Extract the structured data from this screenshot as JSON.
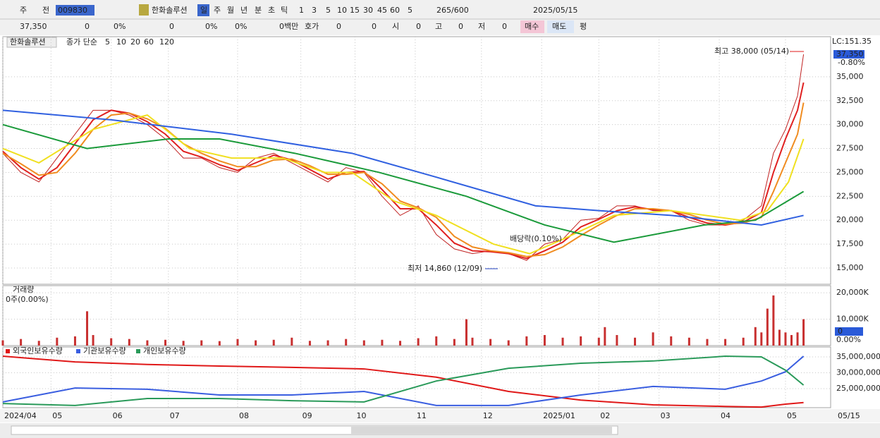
{
  "toolbar": {
    "row1": [
      "주",
      "전",
      "009830",
      "한화솔루션",
      "일",
      "주",
      "월",
      "년",
      "분",
      "초",
      "틱",
      "1",
      "3",
      "5",
      "10",
      "15",
      "30",
      "45",
      "60",
      "5",
      "265",
      "/600",
      "2025/05/15"
    ],
    "row2": [
      "37,350",
      "0",
      "0%",
      "0",
      "0%",
      "0%",
      "0백만",
      "호가",
      "0",
      "0",
      "시",
      "0",
      "고",
      "0",
      "저",
      "0",
      "매수",
      "매도",
      "평"
    ]
  },
  "chart_data": [
    {
      "type": "line",
      "stock_name": "한화솔루션",
      "legend_title": "종가 단순",
      "color": "#c02020",
      "x": [
        0,
        6,
        12,
        18,
        24,
        30,
        36,
        42,
        48,
        54,
        60,
        66,
        72,
        78,
        84,
        90,
        96,
        102,
        108,
        114,
        120,
        126,
        132,
        138,
        144,
        150,
        156,
        162,
        168,
        174,
        180,
        186,
        192,
        198,
        204,
        210,
        216,
        222,
        228,
        234,
        240,
        246,
        252,
        256,
        260,
        264,
        266
      ],
      "values": [
        27000,
        25000,
        24000,
        26500,
        29000,
        31500,
        31500,
        31000,
        30000,
        28500,
        26500,
        26500,
        25500,
        25000,
        26500,
        27000,
        26000,
        25000,
        24000,
        25500,
        25000,
        22500,
        20500,
        21500,
        18500,
        17000,
        16500,
        16800,
        16500,
        15800,
        17500,
        18000,
        20000,
        20200,
        21500,
        21500,
        21000,
        21000,
        20000,
        19500,
        19500,
        20000,
        21500,
        27000,
        29500,
        33000,
        37350
      ],
      "series": [
        {
          "name": "5",
          "color": "#e02020",
          "x": [
            0,
            6,
            12,
            18,
            24,
            30,
            36,
            42,
            48,
            54,
            60,
            66,
            72,
            78,
            84,
            90,
            96,
            102,
            108,
            114,
            120,
            126,
            132,
            138,
            144,
            150,
            156,
            162,
            168,
            174,
            180,
            186,
            192,
            198,
            204,
            210,
            216,
            222,
            228,
            234,
            240,
            246,
            252,
            256,
            260,
            264,
            266
          ],
          "values": [
            27200,
            25500,
            24300,
            25500,
            28000,
            30500,
            31500,
            31200,
            30300,
            29000,
            27200,
            26600,
            25800,
            25200,
            26000,
            26800,
            26300,
            25300,
            24300,
            25000,
            25100,
            23200,
            21200,
            21200,
            19500,
            17600,
            16800,
            16700,
            16500,
            16000,
            16800,
            17700,
            19300,
            20100,
            21000,
            21400,
            21100,
            21000,
            20300,
            19700,
            19500,
            19800,
            20800,
            25000,
            28500,
            31500,
            34400
          ]
        },
        {
          "name": "10",
          "color": "#f08c20",
          "x": [
            0,
            6,
            12,
            18,
            24,
            30,
            36,
            42,
            48,
            54,
            60,
            66,
            72,
            78,
            84,
            90,
            96,
            102,
            108,
            114,
            120,
            126,
            132,
            138,
            144,
            150,
            156,
            162,
            168,
            174,
            180,
            186,
            192,
            198,
            204,
            210,
            216,
            222,
            228,
            234,
            240,
            246,
            252,
            256,
            260,
            264,
            266
          ],
          "values": [
            27000,
            25900,
            24700,
            25000,
            27000,
            29500,
            31000,
            31200,
            30600,
            29600,
            28000,
            27000,
            26200,
            25600,
            25600,
            26300,
            26400,
            25700,
            24800,
            24800,
            25000,
            23800,
            22000,
            21300,
            20300,
            18300,
            17200,
            16800,
            16600,
            16200,
            16400,
            17200,
            18400,
            19500,
            20500,
            21200,
            21200,
            21000,
            20600,
            20000,
            19600,
            19700,
            20300,
            23000,
            26000,
            29000,
            32300
          ]
        },
        {
          "name": "20",
          "color": "#f0e020",
          "x": [
            0,
            12,
            30,
            48,
            62,
            76,
            93,
            107,
            116,
            130,
            144,
            163,
            175,
            186,
            203,
            222,
            245,
            254,
            261,
            266
          ],
          "values": [
            27500,
            26000,
            29500,
            31000,
            27500,
            26500,
            26500,
            25000,
            25000,
            22000,
            20500,
            17500,
            16500,
            18000,
            20500,
            21000,
            20000,
            21000,
            24000,
            28500
          ]
        },
        {
          "name": "60",
          "color": "#1a9a3a",
          "x": [
            0,
            28,
            55,
            72,
            97,
            125,
            154,
            180,
            203,
            233,
            250,
            266
          ],
          "values": [
            30000,
            27500,
            28500,
            28500,
            27000,
            25000,
            22500,
            19500,
            17700,
            19500,
            20000,
            23000
          ]
        },
        {
          "name": "120",
          "color": "#3060e0",
          "x": [
            0,
            36,
            76,
            116,
            144,
            177,
            198,
            222,
            252,
            266
          ],
          "values": [
            31500,
            30500,
            29000,
            27000,
            24500,
            21500,
            21000,
            20500,
            19500,
            20500
          ]
        }
      ],
      "xlim": [
        0,
        275
      ],
      "ylim": [
        13300,
        39200
      ],
      "xticks": [
        {
          "value": 0,
          "label": "2024/04"
        },
        {
          "value": 16,
          "label": "05"
        },
        {
          "value": 36,
          "label": "06"
        },
        {
          "value": 55,
          "label": "07"
        },
        {
          "value": 78,
          "label": "08"
        },
        {
          "value": 99,
          "label": "09"
        },
        {
          "value": 117,
          "label": "10"
        },
        {
          "value": 137,
          "label": "11"
        },
        {
          "value": 159,
          "label": "12"
        },
        {
          "value": 179,
          "label": "2025/01"
        },
        {
          "value": 198,
          "label": "02"
        },
        {
          "value": 218,
          "label": "03"
        },
        {
          "value": 238,
          "label": "04"
        },
        {
          "value": 260,
          "label": "05"
        }
      ],
      "yticks": [
        {
          "value": 15000,
          "label": "15,000"
        },
        {
          "value": 17500,
          "label": "17,500"
        },
        {
          "value": 20000,
          "label": "20,000"
        },
        {
          "value": 22500,
          "label": "22,500"
        },
        {
          "value": 25000,
          "label": "25,000"
        },
        {
          "value": 27500,
          "label": "27,500"
        },
        {
          "value": 30000,
          "label": "30,000"
        },
        {
          "value": 32500,
          "label": "32,500"
        },
        {
          "value": 35000,
          "label": "35,000"
        }
      ],
      "grid": true,
      "cursor_date": "05/15",
      "lc_label": "LC:151.35",
      "current_price": "37,350",
      "change": "-0.80%",
      "annotations": [
        "최고 38,000 (05/14)",
        "최저 14,860 (12/09)",
        "배당락(0.10%)"
      ]
    },
    {
      "type": "bar",
      "title": "거래량",
      "subtitle": "0주(0.00%)",
      "color": "#c83030",
      "x": [
        0,
        6,
        12,
        18,
        24,
        28,
        30,
        36,
        42,
        48,
        54,
        60,
        66,
        72,
        78,
        84,
        90,
        96,
        102,
        108,
        114,
        120,
        126,
        132,
        138,
        144,
        150,
        154,
        156,
        162,
        168,
        174,
        180,
        186,
        192,
        198,
        200,
        204,
        210,
        216,
        222,
        228,
        234,
        240,
        246,
        250,
        252,
        254,
        256,
        258,
        260,
        262,
        264,
        266
      ],
      "values": [
        2000,
        2500,
        1800,
        3000,
        3500,
        13000,
        4000,
        2800,
        2500,
        2000,
        2200,
        1800,
        2000,
        1700,
        2500,
        2000,
        2200,
        3000,
        1800,
        2000,
        2500,
        2000,
        2200,
        1800,
        2800,
        3500,
        2500,
        10000,
        3000,
        2500,
        2000,
        3500,
        4000,
        3000,
        3500,
        3000,
        7000,
        4000,
        3000,
        5000,
        3500,
        3000,
        2500,
        2500,
        3000,
        7000,
        5000,
        14000,
        19000,
        6000,
        5000,
        4000,
        5000,
        10000
      ],
      "xlim": [
        0,
        275
      ],
      "ylim": [
        0,
        22700
      ],
      "yticks": [
        {
          "value": 10000,
          "label": "10,000K"
        },
        {
          "value": 20000,
          "label": "20,000K"
        }
      ],
      "grid": true,
      "current_value": "0",
      "change": "0.00%"
    },
    {
      "type": "line",
      "series": [
        {
          "name": "외국인보유수량",
          "color": "#e01818",
          "x": [
            0,
            24,
            48,
            72,
            96,
            120,
            144,
            168,
            192,
            216,
            240,
            252,
            260,
            266
          ],
          "values": [
            35200000,
            33400000,
            32600000,
            32100000,
            31700000,
            31200000,
            28600000,
            24100000,
            21400000,
            19900000,
            19400000,
            19200000,
            20100000,
            20600000
          ]
        },
        {
          "name": "기관보유수량",
          "color": "#3a5ee0",
          "x": [
            0,
            24,
            48,
            72,
            96,
            120,
            144,
            168,
            192,
            216,
            240,
            252,
            260,
            266
          ],
          "values": [
            20800000,
            25200000,
            24800000,
            23000000,
            23000000,
            24100000,
            19700000,
            19700000,
            23000000,
            25700000,
            24800000,
            27400000,
            30300000,
            35200000
          ]
        },
        {
          "name": "개인보유수량",
          "color": "#2a9a5a",
          "x": [
            0,
            24,
            48,
            72,
            96,
            120,
            144,
            168,
            192,
            216,
            240,
            252,
            260,
            266
          ],
          "values": [
            20300000,
            19700000,
            21900000,
            21900000,
            21200000,
            20800000,
            27400000,
            31400000,
            33000000,
            33700000,
            35200000,
            35000000,
            30800000,
            26100000
          ]
        }
      ],
      "xlim": [
        0,
        275
      ],
      "ylim": [
        19000000,
        38100000
      ],
      "yticks": [
        {
          "value": 25000000,
          "label": "25,000,000"
        },
        {
          "value": 30000000,
          "label": "30,000,000"
        },
        {
          "value": 35000000,
          "label": "35,000,000"
        }
      ],
      "grid": true
    }
  ]
}
